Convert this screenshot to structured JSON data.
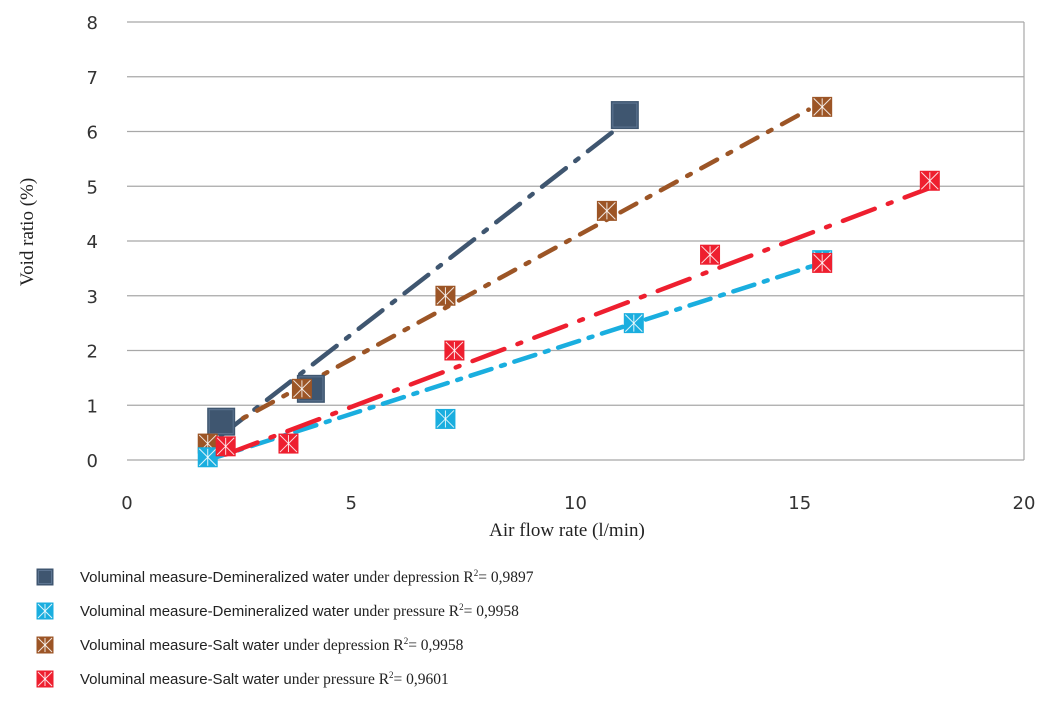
{
  "chart_data": {
    "type": "scatter",
    "xlabel": "Air flow rate (l/min)",
    "ylabel": "Void ratio (%)",
    "xlim": [
      0,
      20
    ],
    "ylim": [
      0,
      8
    ],
    "xticks": [
      0,
      5,
      10,
      15,
      20
    ],
    "yticks": [
      0,
      1,
      2,
      3,
      4,
      5,
      6,
      7,
      8
    ],
    "grid": "horizontal",
    "legend_position": "bottom",
    "series": [
      {
        "name_a": "Voluminal measure-Demineralized water u",
        "name_b": "nder depression R",
        "r2_value": "= 0,9897",
        "color": "#3f5670",
        "marker": "square",
        "points": [
          [
            2.1,
            0.7
          ],
          [
            4.1,
            1.3
          ],
          [
            11.1,
            6.3
          ]
        ],
        "trend": [
          [
            2.1,
            0.45
          ],
          [
            11.0,
            6.1
          ]
        ],
        "dash": "30 12 4 12"
      },
      {
        "name_a": "Voluminal measure-Demineralized water u",
        "name_b": "nder pressure R",
        "r2_value": "= 0,9958",
        "color": "#1aaedf",
        "marker": "square-star",
        "points": [
          [
            1.8,
            0.05
          ],
          [
            7.1,
            0.75
          ],
          [
            11.3,
            2.5
          ],
          [
            15.5,
            3.65
          ]
        ],
        "trend": [
          [
            1.8,
            0.0
          ],
          [
            15.5,
            3.6
          ]
        ],
        "dash": "22 10 4 10"
      },
      {
        "name_a": "Voluminal measure-Salt water u",
        "name_b": "nder depression R",
        "r2_value": "= 0,9958",
        "color": "#9c5526",
        "marker": "square-star",
        "points": [
          [
            1.8,
            0.3
          ],
          [
            3.9,
            1.3
          ],
          [
            7.1,
            3.0
          ],
          [
            10.7,
            4.55
          ],
          [
            15.5,
            6.45
          ]
        ],
        "trend": [
          [
            2.0,
            0.5
          ],
          [
            15.2,
            6.4
          ]
        ],
        "dash": "18 12 4 12"
      },
      {
        "name_a": "Voluminal measure-Salt water u",
        "name_b": "nder pressure R",
        "r2_value": "= 0,9601",
        "color": "#ee1f2f",
        "marker": "square-star",
        "points": [
          [
            2.2,
            0.25
          ],
          [
            3.6,
            0.3
          ],
          [
            7.3,
            2.0
          ],
          [
            13.0,
            3.75
          ],
          [
            15.5,
            3.6
          ],
          [
            17.9,
            5.1
          ]
        ],
        "trend": [
          [
            2.2,
            0.1
          ],
          [
            18.0,
            5.0
          ]
        ],
        "dash": "34 14 4 14"
      }
    ]
  },
  "legend_sup": "2"
}
